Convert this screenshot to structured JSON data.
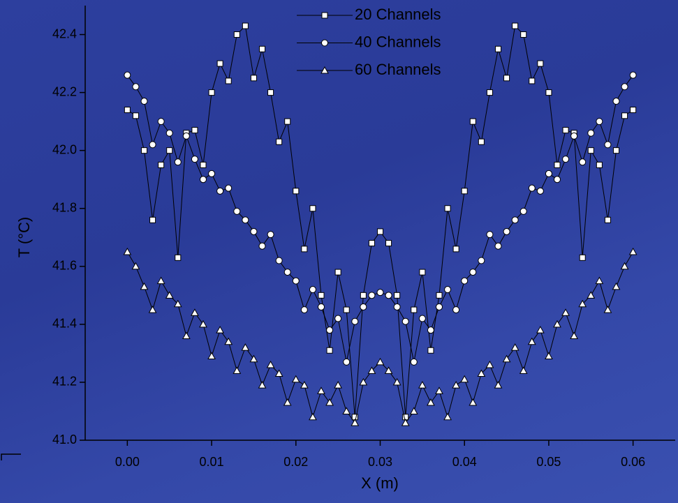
{
  "chart_data": {
    "type": "line",
    "x_label": "X (m)",
    "y_label": "T (°C)",
    "x": [
      0,
      0.001,
      0.002,
      0.003,
      0.004,
      0.005,
      0.006,
      0.007,
      0.008,
      0.009,
      0.01,
      0.011,
      0.012,
      0.013,
      0.014,
      0.015,
      0.016,
      0.017,
      0.018,
      0.019,
      0.02,
      0.021,
      0.022,
      0.023,
      0.024,
      0.025,
      0.026,
      0.027,
      0.028,
      0.029,
      0.03,
      0.031,
      0.032,
      0.033,
      0.034,
      0.035,
      0.036,
      0.037,
      0.038,
      0.039,
      0.04,
      0.041,
      0.042,
      0.043,
      0.044,
      0.045,
      0.046,
      0.047,
      0.048,
      0.049,
      0.05,
      0.051,
      0.052,
      0.053,
      0.054,
      0.055,
      0.056,
      0.057,
      0.058,
      0.059,
      0.06
    ],
    "series": [
      {
        "name": "20 Channels",
        "color": "#000000",
        "marker": "square",
        "values": [
          42.14,
          42.12,
          42.0,
          41.76,
          41.95,
          42.0,
          41.63,
          42.06,
          42.07,
          41.95,
          42.2,
          42.3,
          42.24,
          42.4,
          42.43,
          42.25,
          42.35,
          42.2,
          42.03,
          42.1,
          41.86,
          41.66,
          41.8,
          41.5,
          41.31,
          41.58,
          41.45,
          41.08,
          41.5,
          41.68,
          41.72,
          41.68,
          41.5,
          41.08,
          41.45,
          41.58,
          41.31,
          41.5,
          41.8,
          41.66,
          41.86,
          42.1,
          42.03,
          42.2,
          42.35,
          42.25,
          42.43,
          42.4,
          42.24,
          42.3,
          42.2,
          41.95,
          42.07,
          42.06,
          41.63,
          42.0,
          41.95,
          41.76,
          42.0,
          42.12,
          42.14
        ]
      },
      {
        "name": "40 Channels",
        "color": "#000000",
        "marker": "circle",
        "values": [
          42.26,
          42.22,
          42.17,
          42.02,
          42.1,
          42.06,
          41.96,
          42.05,
          41.97,
          41.9,
          41.92,
          41.86,
          41.87,
          41.79,
          41.76,
          41.72,
          41.67,
          41.71,
          41.62,
          41.58,
          41.55,
          41.45,
          41.52,
          41.46,
          41.38,
          41.42,
          41.27,
          41.41,
          41.46,
          41.5,
          41.51,
          41.5,
          41.46,
          41.41,
          41.27,
          41.42,
          41.38,
          41.46,
          41.52,
          41.45,
          41.55,
          41.58,
          41.62,
          41.71,
          41.67,
          41.72,
          41.76,
          41.79,
          41.87,
          41.86,
          41.92,
          41.9,
          41.97,
          42.05,
          41.96,
          42.06,
          42.1,
          42.02,
          42.17,
          42.22,
          42.26
        ]
      },
      {
        "name": "60 Channels",
        "color": "#000000",
        "marker": "triangle",
        "values": [
          41.65,
          41.6,
          41.53,
          41.45,
          41.55,
          41.5,
          41.47,
          41.36,
          41.44,
          41.4,
          41.29,
          41.38,
          41.34,
          41.24,
          41.32,
          41.28,
          41.19,
          41.26,
          41.23,
          41.13,
          41.21,
          41.19,
          41.08,
          41.17,
          41.13,
          41.19,
          41.1,
          41.06,
          41.2,
          41.24,
          41.27,
          41.24,
          41.2,
          41.06,
          41.1,
          41.19,
          41.13,
          41.17,
          41.08,
          41.19,
          41.21,
          41.13,
          41.23,
          41.26,
          41.19,
          41.28,
          41.32,
          41.24,
          41.34,
          41.38,
          41.29,
          41.4,
          41.44,
          41.36,
          41.47,
          41.5,
          41.55,
          41.45,
          41.53,
          41.6,
          41.65
        ]
      }
    ],
    "xlim": [
      -0.005,
      0.065
    ],
    "xticks": [
      {
        "value": 0,
        "label": "0.00"
      },
      {
        "value": 0.01,
        "label": "0.01"
      },
      {
        "value": 0.02,
        "label": "0.02"
      },
      {
        "value": 0.03,
        "label": "0.03"
      },
      {
        "value": 0.04,
        "label": "0.04"
      },
      {
        "value": 0.05,
        "label": "0.05"
      },
      {
        "value": 0.06,
        "label": "0.06"
      }
    ],
    "ylim": [
      41.0,
      42.5
    ],
    "yticks": [
      {
        "value": 41,
        "label": "41.0"
      },
      41.2,
      41.4,
      41.6,
      41.8,
      {
        "value": 42,
        "label": "42.0"
      },
      42.2,
      42.4
    ],
    "grid": false,
    "legend": "top"
  }
}
